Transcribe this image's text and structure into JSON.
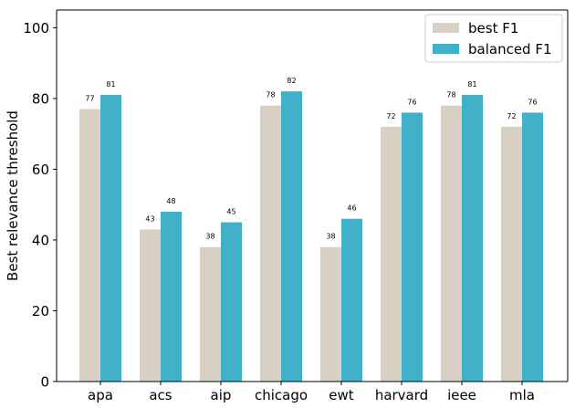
{
  "chart_data": {
    "type": "bar",
    "categories": [
      "apa",
      "acs",
      "aip",
      "chicago",
      "ewt",
      "harvard",
      "ieee",
      "mla"
    ],
    "series": [
      {
        "name": "best F1",
        "values": [
          77,
          43,
          38,
          78,
          38,
          72,
          78,
          72
        ],
        "color": "#d8d0c3"
      },
      {
        "name": "balanced F1",
        "values": [
          81,
          48,
          45,
          82,
          46,
          76,
          81,
          76
        ],
        "color": "#41b0c9"
      }
    ],
    "title": "",
    "xlabel": "",
    "ylabel": "Best relevance threshold",
    "ylim": [
      0,
      105
    ],
    "yticks": [
      0,
      20,
      40,
      60,
      80,
      100
    ],
    "grid": false,
    "legend": "top-right"
  }
}
